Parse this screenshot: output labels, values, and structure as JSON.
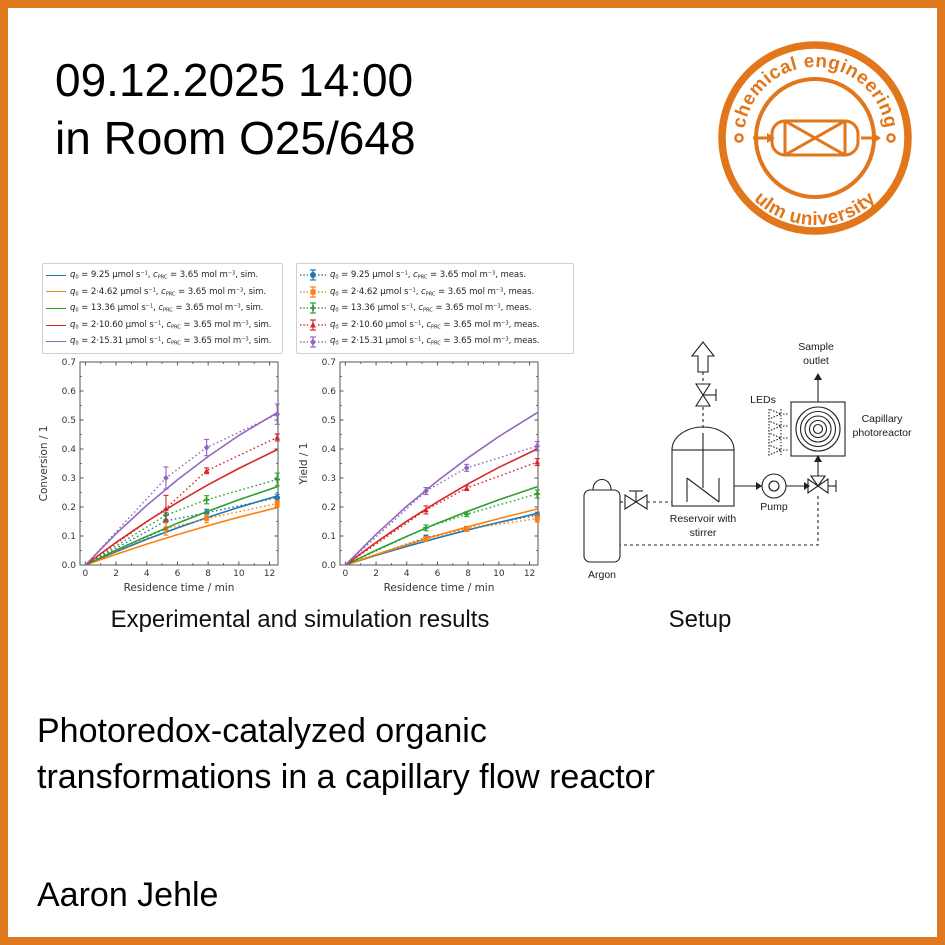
{
  "page": {
    "border_color": "#DF781E",
    "background": "#ffffff"
  },
  "header": {
    "datetime": "09.12.2025 14:00",
    "room": "in Room O25/648"
  },
  "logo": {
    "arc_top": "chemical engineering",
    "arc_bottom": "ulm university",
    "color": "#E2761B"
  },
  "legend": {
    "template": [
      {
        "t": "q",
        "s": "i"
      },
      {
        "t": "0",
        "s": "sub"
      },
      {
        "t": " = {q0} μmol s",
        "s": ""
      },
      {
        "t": "−1",
        "s": "sup"
      },
      {
        "t": ",  ",
        "s": ""
      },
      {
        "t": "c",
        "s": "i"
      },
      {
        "t": "PRC",
        "s": "sub"
      },
      {
        "t": " = {c} mol m",
        "s": ""
      },
      {
        "t": "−3",
        "s": "sup"
      },
      {
        "t": ", {mode}",
        "s": ""
      }
    ],
    "modes": {
      "sim": "sim.",
      "meas": "meas."
    },
    "series": [
      {
        "q0": "9.25",
        "c": "3.65",
        "color": "#1f77b4",
        "marker": "circle"
      },
      {
        "q0": "2·4.62",
        "c": "3.65",
        "color": "#ff7f0e",
        "marker": "square"
      },
      {
        "q0": "13.36",
        "c": "3.65",
        "color": "#2ca02c",
        "marker": "plus"
      },
      {
        "q0": "2·10.60",
        "c": "3.65",
        "color": "#d62728",
        "marker": "triangle"
      },
      {
        "q0": "2·15.31",
        "c": "3.65",
        "color": "#9467bd",
        "marker": "diamond"
      }
    ]
  },
  "chart_data": [
    {
      "type": "line",
      "title": "",
      "xlabel": "Residence time / min",
      "ylabel": "Conversion / 1",
      "xlim": [
        -0.35,
        12.55
      ],
      "ylim": [
        0,
        0.7
      ],
      "xticks": [
        0,
        2,
        4,
        6,
        8,
        10,
        12
      ],
      "yticks": [
        "0.0",
        "0.1",
        "0.2",
        "0.3",
        "0.4",
        "0.5",
        "0.6",
        "0.7"
      ],
      "grid": false,
      "sim_x": [
        0,
        2,
        4,
        6,
        8,
        10,
        12.5
      ],
      "meas_x": [
        5.25,
        7.9,
        12.5
      ],
      "series": [
        {
          "name": "q0 = 9.25 μmol/s",
          "color": "#1f77b4",
          "marker": "circle",
          "sim_y": [
            0,
            0.046,
            0.089,
            0.128,
            0.165,
            0.199,
            0.238
          ],
          "meas_y": [
            0.152,
            0.18,
            0.232
          ],
          "err": [
            0.028,
            0.012,
            0.012
          ]
        },
        {
          "name": "q0 = 2·4.62 μmol/s",
          "color": "#ff7f0e",
          "marker": "square",
          "sim_y": [
            0,
            0.037,
            0.072,
            0.105,
            0.136,
            0.165,
            0.198
          ],
          "meas_y": [
            0.125,
            0.16,
            0.212
          ],
          "err": [
            0.022,
            0.014,
            0.01
          ]
        },
        {
          "name": "q0 = 13.36 μmol/s",
          "color": "#2ca02c",
          "marker": "plus",
          "sim_y": [
            0,
            0.051,
            0.099,
            0.144,
            0.186,
            0.225,
            0.27
          ],
          "meas_y": [
            0.172,
            0.225,
            0.295
          ],
          "err": [
            0.02,
            0.014,
            0.022
          ]
        },
        {
          "name": "q0 = 2·10.60 μmol/s",
          "color": "#d62728",
          "marker": "triangle",
          "sim_y": [
            0,
            0.078,
            0.15,
            0.216,
            0.277,
            0.333,
            0.398
          ],
          "meas_y": [
            0.195,
            0.325,
            0.44
          ],
          "err": [
            0.045,
            0.01,
            0.012
          ]
        },
        {
          "name": "q0 = 2·15.31 μmol/s",
          "color": "#9467bd",
          "marker": "diamond",
          "sim_y": [
            0,
            0.108,
            0.206,
            0.294,
            0.374,
            0.447,
            0.525
          ],
          "meas_y": [
            0.3,
            0.405,
            0.52
          ],
          "err": [
            0.038,
            0.028,
            0.035
          ]
        }
      ]
    },
    {
      "type": "line",
      "title": "",
      "xlabel": "Residence time / min",
      "ylabel": "Yield / 1",
      "xlim": [
        -0.35,
        12.55
      ],
      "ylim": [
        0,
        0.7
      ],
      "xticks": [
        0,
        2,
        4,
        6,
        8,
        10,
        12
      ],
      "yticks": [
        "0.0",
        "0.1",
        "0.2",
        "0.3",
        "0.4",
        "0.5",
        "0.6",
        "0.7"
      ],
      "grid": false,
      "sim_x": [
        0,
        2,
        4,
        6,
        8,
        10,
        12.5
      ],
      "meas_x": [
        5.25,
        7.9,
        12.5
      ],
      "series": [
        {
          "name": "q0 = 9.25 μmol/s",
          "color": "#1f77b4",
          "marker": "circle",
          "sim_y": [
            0,
            0.033,
            0.064,
            0.093,
            0.121,
            0.147,
            0.178
          ],
          "meas_y": [
            0.095,
            0.125,
            0.172
          ],
          "err": [
            0.008,
            0.008,
            0.01
          ]
        },
        {
          "name": "q0 = 2·4.62 μmol/s",
          "color": "#ff7f0e",
          "marker": "square",
          "sim_y": [
            0,
            0.036,
            0.07,
            0.102,
            0.132,
            0.16,
            0.193
          ],
          "meas_y": [
            0.09,
            0.124,
            0.16
          ],
          "err": [
            0.008,
            0.008,
            0.012
          ]
        },
        {
          "name": "q0 = 13.36 μmol/s",
          "color": "#2ca02c",
          "marker": "plus",
          "sim_y": [
            0,
            0.051,
            0.099,
            0.144,
            0.186,
            0.225,
            0.27
          ],
          "meas_y": [
            0.128,
            0.175,
            0.245
          ],
          "err": [
            0.01,
            0.008,
            0.014
          ]
        },
        {
          "name": "q0 = 2·10.60 μmol/s",
          "color": "#d62728",
          "marker": "triangle",
          "sim_y": [
            0,
            0.078,
            0.151,
            0.218,
            0.28,
            0.337,
            0.4
          ],
          "meas_y": [
            0.19,
            0.265,
            0.355
          ],
          "err": [
            0.014,
            0.008,
            0.012
          ]
        },
        {
          "name": "q0 = 2·15.31 μmol/s",
          "color": "#9467bd",
          "marker": "diamond",
          "sim_y": [
            0,
            0.106,
            0.203,
            0.29,
            0.37,
            0.443,
            0.525
          ],
          "meas_y": [
            0.255,
            0.335,
            0.41
          ],
          "err": [
            0.012,
            0.012,
            0.016
          ]
        }
      ]
    }
  ],
  "figure_captions": {
    "results": "Experimental and simulation results",
    "setup": "Setup"
  },
  "setup_diagram": {
    "labels": {
      "argon": "Argon",
      "reservoir_1": "Reservoir with",
      "reservoir_2": "stirrer",
      "pump": "Pump",
      "leds": "LEDs",
      "sample_1": "Sample",
      "sample_2": "outlet",
      "reactor_1": "Capillary",
      "reactor_2": "photoreactor"
    }
  },
  "title_lines": [
    "Photoredox-catalyzed organic",
    "transformations in a capillary flow reactor"
  ],
  "speaker": "Aaron Jehle"
}
